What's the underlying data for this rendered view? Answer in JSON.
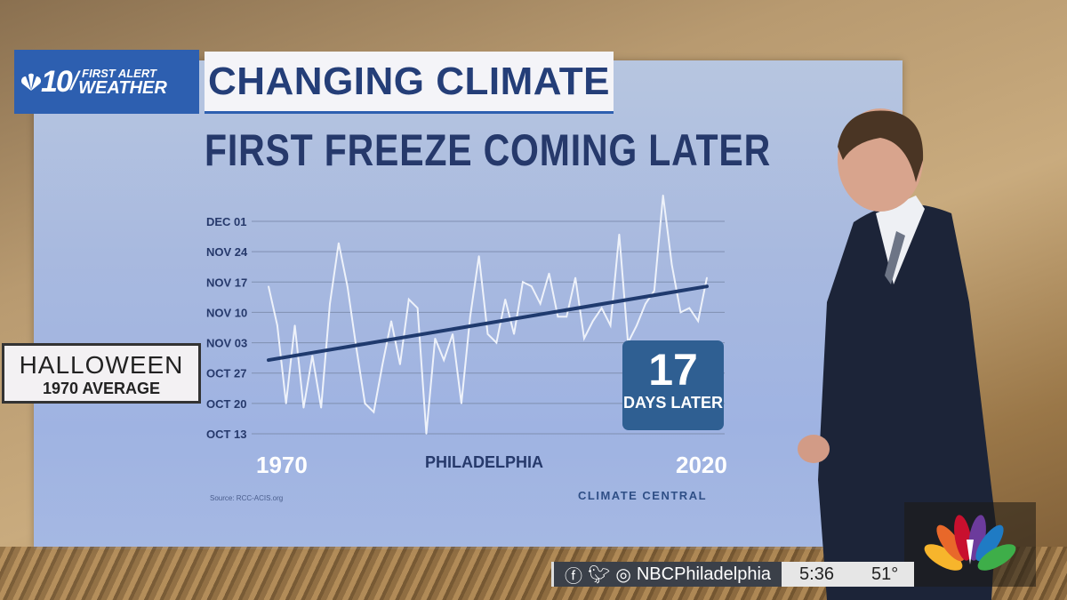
{
  "header": {
    "station_logo": "10",
    "brand_line1": "FIRST ALERT",
    "brand_line2": "WEATHER",
    "segment_title": "CHANGING CLIMATE"
  },
  "callout": {
    "title": "HALLOWEEN",
    "subtitle": "1970 AVERAGE"
  },
  "badge": {
    "value": "17",
    "label": "DAYS LATER"
  },
  "footer": {
    "source": "Source: RCC-ACIS.org",
    "credit": "CLIMATE CENTRAL"
  },
  "ticker": {
    "handle": "NBCPhiladelphia",
    "time": "5:36",
    "temperature": "51°",
    "icons": [
      "facebook-icon",
      "twitter-icon",
      "instagram-icon"
    ]
  },
  "colors": {
    "brand_blue": "#2d5fb0",
    "title_navy": "#243e78",
    "trend_line": "#1f3a6e",
    "data_line": "#eef2fa",
    "badge_bg": "#2f5f92"
  },
  "chart_data": {
    "type": "line",
    "title": "FIRST FREEZE COMING LATER",
    "xlabel": "PHILADELPHIA",
    "x_start_label": "1970",
    "x_end_label": "2020",
    "xlim": [
      1970,
      2020
    ],
    "ylim": [
      "Oct 13",
      "Dec 01"
    ],
    "y_ticks": [
      "DEC 01",
      "NOV 24",
      "NOV 17",
      "NOV 10",
      "NOV 03",
      "OCT 27",
      "OCT 20",
      "OCT 13"
    ],
    "grid": true,
    "series": [
      {
        "x": [
          1970,
          1971,
          1972,
          1973,
          1974,
          1975,
          1976,
          1977,
          1978,
          1979,
          1980,
          1981,
          1982,
          1983,
          1984,
          1985,
          1986,
          1987,
          1988,
          1989,
          1990,
          1991,
          1992,
          1993,
          1994,
          1995,
          1996,
          1997,
          1998,
          1999,
          2000,
          2001,
          2002,
          2003,
          2004,
          2005,
          2006,
          2007,
          2008,
          2009,
          2010,
          2011,
          2012,
          2013,
          2014,
          2015,
          2016,
          2017,
          2018,
          2019,
          2020
        ],
        "values": [
          "Nov 16",
          "Nov 7",
          "Oct 20",
          "Nov 7",
          "Oct 19",
          "Oct 31",
          "Oct 19",
          "Nov 12",
          "Nov 26",
          "Nov 16",
          "Nov 2",
          "Oct 20",
          "Oct 18",
          "Oct 29",
          "Nov 8",
          "Oct 29",
          "Nov 13",
          "Nov 11",
          "Oct 13",
          "Nov 4",
          "Oct 30",
          "Nov 5",
          "Oct 20",
          "Nov 9",
          "Nov 23",
          "Nov 5",
          "Nov 3",
          "Nov 13",
          "Nov 5",
          "Nov 17",
          "Nov 16",
          "Nov 12",
          "Nov 19",
          "Nov 9",
          "Nov 9",
          "Nov 18",
          "Nov 4",
          "Nov 8",
          "Nov 11",
          "Nov 7",
          "Nov 28",
          "Nov 3",
          "Nov 7",
          "Nov 12",
          "Nov 15",
          "Dec 7",
          "Nov 21",
          "Nov 10",
          "Nov 11",
          "Nov 8",
          "Nov 18"
        ]
      }
    ],
    "trend": {
      "x": [
        1970,
        2020
      ],
      "values": [
        "Oct 30",
        "Nov 16"
      ]
    }
  }
}
